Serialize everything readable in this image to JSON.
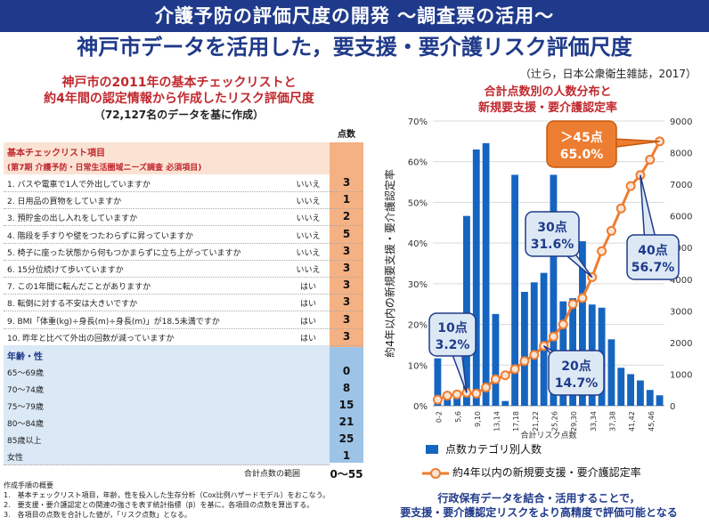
{
  "banner": "介護予防の評価尺度の開発 〜調査票の活用〜",
  "title": "神戸市データを活用した，要支援・要介護リスク評価尺度",
  "citation": "（辻ら，日本公衆衛生雑誌，2017）",
  "left": {
    "heading1": "神戸市の2011年の基本チェックリストと",
    "heading2": "約4年間の認定情報から作成したリスク評価尺度",
    "heading3": "（72,127名のデータを基に作成）",
    "score_header": "点数",
    "section1_title": "基本チェックリスト項目",
    "section1_subtitle": "(第7期 介護予防・日常生活圏域ニーズ調査 必須項目)",
    "checklist": [
      {
        "label": "1. バスや電車で1人で外出していますか",
        "answer": "いいえ",
        "score": "3"
      },
      {
        "label": "2. 日用品の買物をしていますか",
        "answer": "いいえ",
        "score": "1"
      },
      {
        "label": "3. 預貯金の出し入れをしていますか",
        "answer": "いいえ",
        "score": "2"
      },
      {
        "label": "4. 階段を手すりや壁をつたわらずに昇っていますか",
        "answer": "いいえ",
        "score": "5"
      },
      {
        "label": "5. 椅子に座った状態から何もつかまらずに立ち上がっていますか",
        "answer": "いいえ",
        "score": "3"
      },
      {
        "label": "6. 15分位続けて歩いていますか",
        "answer": "いいえ",
        "score": "3"
      },
      {
        "label": "7. この1年間に転んだことがありますか",
        "answer": "はい",
        "score": "3"
      },
      {
        "label": "8. 転倒に対する不安は大きいですか",
        "answer": "はい",
        "score": "3"
      },
      {
        "label": "9. BMI「体重(kg)÷身長(m)÷身長(m)」が18.5未満ですか",
        "answer": "はい",
        "score": "3"
      },
      {
        "label": "10. 昨年と比べて外出の回数が減っていますか",
        "answer": "はい",
        "score": "3"
      }
    ],
    "section2_title": "年齢・性",
    "demographics": [
      {
        "label": "65〜69歳",
        "score": "0"
      },
      {
        "label": "70〜74歳",
        "score": "8"
      },
      {
        "label": "75〜79歳",
        "score": "15"
      },
      {
        "label": "80〜84歳",
        "score": "21"
      },
      {
        "label": "85歳以上",
        "score": "25"
      },
      {
        "label": "女性",
        "score": "1"
      }
    ],
    "total_label": "合計点数の範囲",
    "total_value": "0〜55",
    "notes": [
      "作成手順の概要",
      "1.　基本チェックリスト項目，年齢，性を投入した生存分析（Cox比例ハザードモデル）をおこなう。",
      "2.　要支援・要介護認定との関連の強さを表す統計指標（β）を基に，各項目の点数を算出する。",
      "3.　各項目の点数を合計した値が，「リスク点数」となる。"
    ]
  },
  "right": {
    "heading1": "合計点数別の人数分布と",
    "heading2": "新規要支援・要介護認定率",
    "legend_bar": "点数カテゴリ別人数",
    "legend_line": "約4年以内の新規要支援・要介護認定率",
    "conclusion1": "行政保有データを結合・活用することで，",
    "conclusion2": "要支援・要介護認定リスクをより高精度で評価可能となる"
  },
  "chart_data": {
    "type": "bar",
    "xlabel": "合計リスク点数",
    "ylabel_left": "約4年以内の新規要支援・要介護認定率",
    "ylim_left": [
      0,
      70
    ],
    "ylim_right": [
      0,
      9000
    ],
    "left_ticks": [
      "0%",
      "10%",
      "20%",
      "30%",
      "40%",
      "50%",
      "60%",
      "70%"
    ],
    "right_ticks": [
      "0",
      "1000",
      "2000",
      "3000",
      "4000",
      "5000",
      "6000",
      "7000",
      "8000",
      "9000"
    ],
    "x_tick_labels": [
      "0-2",
      "5,6",
      "9,10",
      "13,14",
      "17,18",
      "21,22",
      "25,26",
      "29,30",
      "33,34",
      "37,38",
      "41,42",
      "45,46"
    ],
    "series": [
      {
        "name": "点数カテゴリ別人数",
        "kind": "bar",
        "axis": "right",
        "values": [
          1500,
          350,
          400,
          6000,
          8100,
          8300,
          2900,
          150,
          7300,
          3600,
          3900,
          4200,
          7300,
          3300,
          3400,
          5200,
          3200,
          3100,
          2100,
          1200,
          1000,
          800,
          500,
          330
        ]
      },
      {
        "name": "約4年以内の新規要支援・要介護認定率",
        "kind": "line",
        "axis": "left",
        "values": [
          1.5,
          2.5,
          2.8,
          3.2,
          3.0,
          4.5,
          6.5,
          7.5,
          9.0,
          11.0,
          12.5,
          14.7,
          17.0,
          20.0,
          25.0,
          26.5,
          31.6,
          38.0,
          43.0,
          48.5,
          54.0,
          56.7,
          60.5,
          65.0
        ]
      }
    ],
    "annotations": [
      {
        "title": "10点",
        "value": "3.2%"
      },
      {
        "title": "20点",
        "value": "14.7%"
      },
      {
        "title": "30点",
        "value": "31.6%"
      },
      {
        "title": "40点",
        "value": "56.7%"
      },
      {
        "title": "＞45点",
        "value": "65.0%"
      }
    ],
    "colors": {
      "bar": "#1565c0",
      "line": "#ed7d31",
      "callout_fill": "#dce9f5",
      "callout_stroke": "#1f3a8a",
      "callout_orange": "#ed7d31"
    }
  }
}
